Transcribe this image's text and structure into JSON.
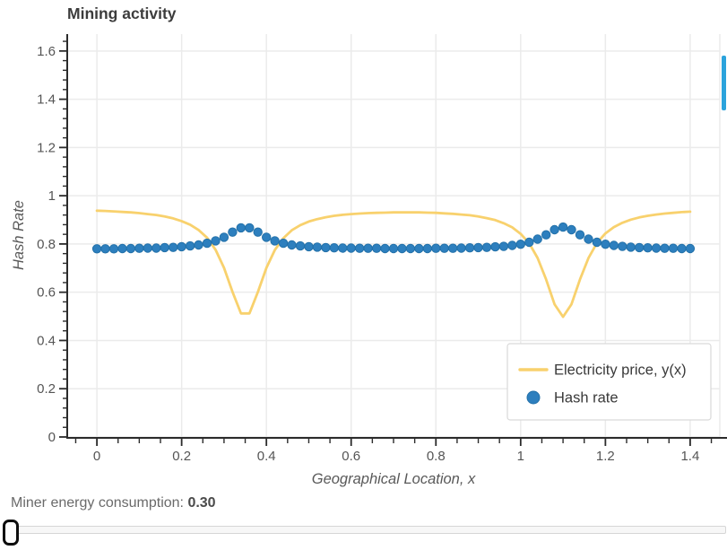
{
  "chart": {
    "title": "Mining activity",
    "xlabel": "Geographical Location, x",
    "ylabel": "Hash Rate",
    "legend": {
      "position": "lower right",
      "items": [
        {
          "label": "Electricity price, y(x)",
          "marker": "line",
          "color": "#f8d16d"
        },
        {
          "label": "Hash rate",
          "marker": "circle",
          "color": "#2d7fbe"
        }
      ]
    },
    "colors": {
      "line": "#f8d16d",
      "dot_fill": "#2d7fbe",
      "dot_edge": "#2371a9",
      "axis": "#2b2b2b",
      "grid": "#ebebeb",
      "tick_label": "#555555",
      "axis_label": "#595959",
      "title": "#3c3c3c",
      "legend_border": "#d9d9d9",
      "legend_text": "#3a3a3a",
      "scrollbar": "#2ba3dc"
    }
  },
  "chart_data": {
    "type": "line",
    "grid": true,
    "xlim": [
      -0.07,
      1.47
    ],
    "ylim": [
      0,
      1.67
    ],
    "xticks": [
      0,
      0.2,
      0.4,
      0.6,
      0.8,
      1,
      1.2,
      1.4
    ],
    "xtick_labels": [
      "0",
      "0.2",
      "0.4",
      "0.6",
      "0.8",
      "1",
      "1.2",
      "1.4"
    ],
    "yticks": [
      0,
      0.2,
      0.4,
      0.6,
      0.8,
      1,
      1.2,
      1.4,
      1.6
    ],
    "ytick_labels": [
      "0",
      "0.2",
      "0.4",
      "0.6",
      "0.8",
      "1",
      "1.2",
      "1.4",
      "1.6"
    ],
    "x_minor_step": 0.05,
    "y_minor_step": 0.04,
    "x": [
      0,
      0.02,
      0.04,
      0.06,
      0.08,
      0.1,
      0.12,
      0.14,
      0.16,
      0.18,
      0.2,
      0.22,
      0.24,
      0.26,
      0.28,
      0.3,
      0.32,
      0.34,
      0.36,
      0.38,
      0.4,
      0.42,
      0.44,
      0.46,
      0.48,
      0.5,
      0.52,
      0.54,
      0.56,
      0.58,
      0.6,
      0.62,
      0.64,
      0.66,
      0.68,
      0.7,
      0.72,
      0.74,
      0.76,
      0.78,
      0.8,
      0.82,
      0.84,
      0.86,
      0.88,
      0.9,
      0.92,
      0.94,
      0.96,
      0.98,
      1,
      1.02,
      1.04,
      1.06,
      1.08,
      1.1,
      1.12,
      1.14,
      1.16,
      1.18,
      1.2,
      1.22,
      1.24,
      1.26,
      1.28,
      1.3,
      1.32,
      1.34,
      1.36,
      1.38,
      1.4
    ],
    "series": [
      {
        "name": "Electricity price, y(x)",
        "type": "line",
        "color": "#f8d16d",
        "values": [
          0.938,
          0.937,
          0.935,
          0.933,
          0.931,
          0.928,
          0.924,
          0.92,
          0.914,
          0.906,
          0.895,
          0.88,
          0.858,
          0.826,
          0.776,
          0.701,
          0.601,
          0.512,
          0.512,
          0.601,
          0.701,
          0.775,
          0.824,
          0.857,
          0.878,
          0.893,
          0.903,
          0.911,
          0.917,
          0.921,
          0.924,
          0.926,
          0.928,
          0.929,
          0.93,
          0.931,
          0.931,
          0.931,
          0.931,
          0.93,
          0.929,
          0.927,
          0.925,
          0.922,
          0.919,
          0.914,
          0.907,
          0.899,
          0.886,
          0.869,
          0.842,
          0.803,
          0.742,
          0.653,
          0.55,
          0.498,
          0.55,
          0.653,
          0.742,
          0.804,
          0.844,
          0.87,
          0.888,
          0.901,
          0.91,
          0.917,
          0.922,
          0.926,
          0.929,
          0.932,
          0.934
        ]
      },
      {
        "name": "Hash rate",
        "type": "scatter",
        "color": "#2d7fbe",
        "values": [
          0.78,
          0.78,
          0.78,
          0.781,
          0.781,
          0.782,
          0.783,
          0.783,
          0.785,
          0.786,
          0.789,
          0.792,
          0.796,
          0.803,
          0.813,
          0.828,
          0.849,
          0.867,
          0.867,
          0.849,
          0.828,
          0.813,
          0.803,
          0.796,
          0.792,
          0.789,
          0.787,
          0.785,
          0.784,
          0.783,
          0.783,
          0.782,
          0.782,
          0.782,
          0.781,
          0.781,
          0.781,
          0.781,
          0.781,
          0.781,
          0.782,
          0.782,
          0.782,
          0.783,
          0.784,
          0.785,
          0.786,
          0.788,
          0.79,
          0.794,
          0.799,
          0.807,
          0.82,
          0.838,
          0.859,
          0.87,
          0.859,
          0.838,
          0.82,
          0.807,
          0.799,
          0.794,
          0.79,
          0.787,
          0.785,
          0.784,
          0.783,
          0.782,
          0.782,
          0.781,
          0.781
        ]
      }
    ]
  },
  "controls": {
    "readout_label": "Miner energy consumption: ",
    "readout_value": "0.30",
    "slider_value": 0.3
  }
}
